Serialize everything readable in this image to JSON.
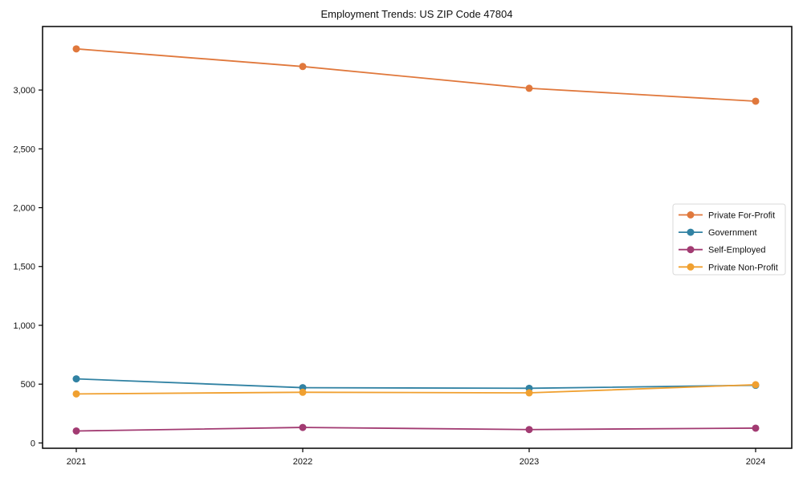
{
  "chart_data": {
    "type": "line",
    "title": "Employment Trends: US ZIP Code 47804",
    "x": [
      "2021",
      "2022",
      "2023",
      "2024"
    ],
    "series": [
      {
        "name": "Private For-Profit",
        "color": "#E0783C",
        "values": [
          3350,
          3200,
          3015,
          2905
        ]
      },
      {
        "name": "Government",
        "color": "#3182A3",
        "values": [
          545,
          470,
          465,
          490
        ]
      },
      {
        "name": "Self-Employed",
        "color": "#A23B72",
        "values": [
          102,
          132,
          114,
          126
        ]
      },
      {
        "name": "Private Non-Profit",
        "color": "#F0A030",
        "values": [
          417,
          431,
          426,
          495
        ]
      }
    ],
    "yticks": [
      0,
      500,
      1000,
      1500,
      2000,
      2500,
      3000
    ],
    "ylim": [
      -45,
      3540
    ],
    "xlabel": "",
    "ylabel": "",
    "grid": false,
    "legend_position": "center right",
    "marker": "circle",
    "frame_color": "#000000",
    "legend_border_color": "#d9d9d9",
    "legend_background": "#ffffff"
  }
}
